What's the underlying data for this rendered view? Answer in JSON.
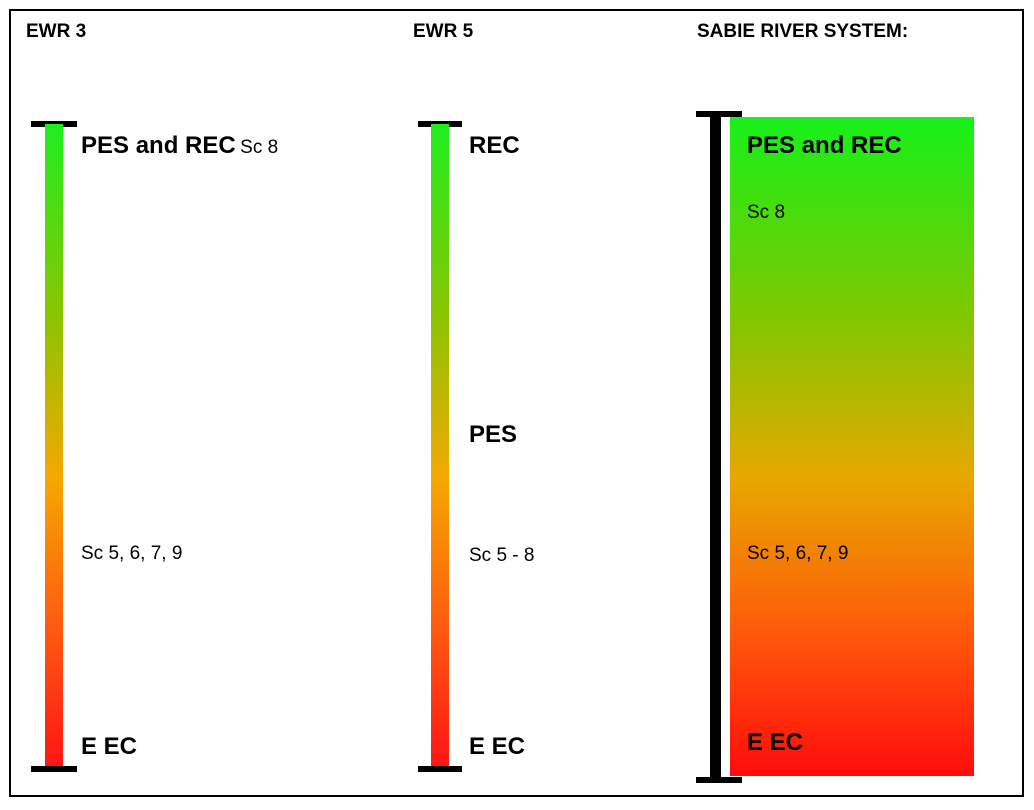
{
  "columns": [
    {
      "header": "EWR 3",
      "top_bold": "PES and REC",
      "top_note": "Sc 8",
      "mid_note": "Sc 5, 6, 7, 9",
      "bottom_bold": "E EC"
    },
    {
      "header": "EWR 5",
      "top_bold": "REC",
      "mid_bold": "PES",
      "mid_note": "Sc 5 - 8",
      "bottom_bold": "E EC"
    },
    {
      "header": "SABIE RIVER SYSTEM:",
      "top_bold": "PES and REC",
      "top_note": "Sc 8",
      "mid_note": "Sc 5, 6, 7, 9",
      "bottom_bold": "E EC"
    }
  ],
  "colors": {
    "top": "#1fee1f",
    "middle": "#f5a800",
    "bottom": "#ff1414"
  }
}
